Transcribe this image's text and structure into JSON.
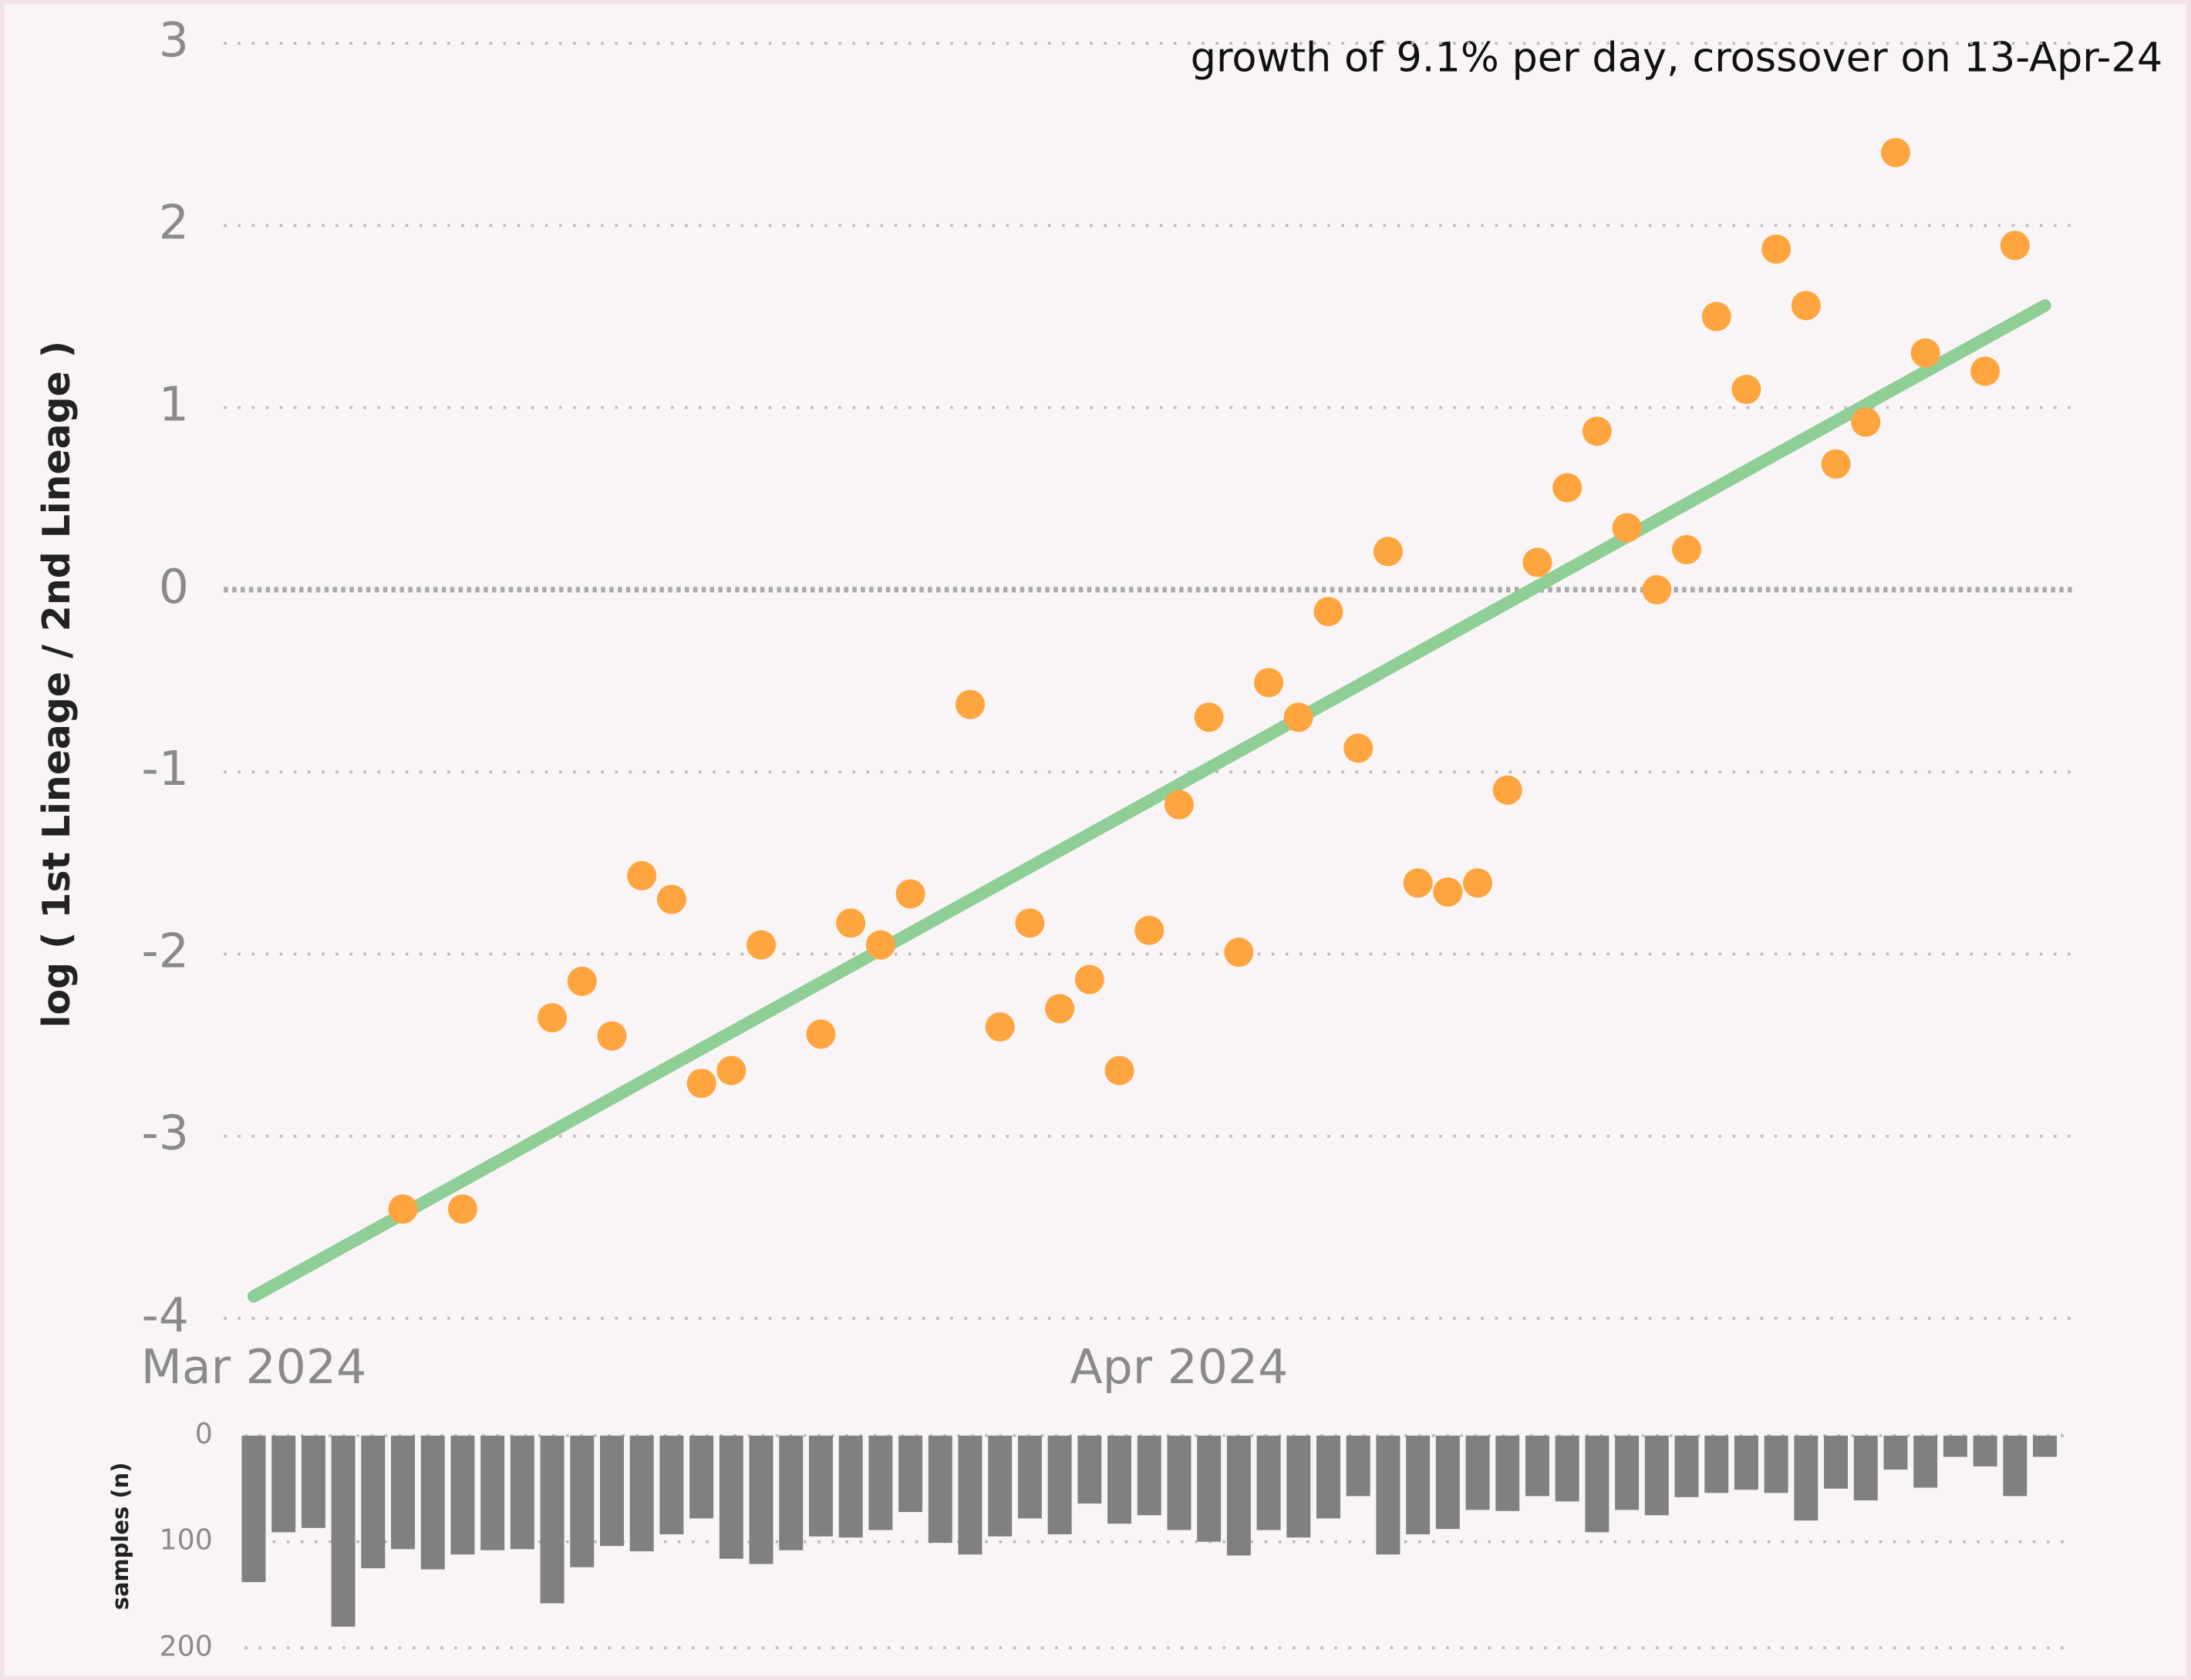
{
  "chart_data": [
    {
      "type": "scatter",
      "annotation": "growth of 9.1% per day, crossover on 13-Apr-24",
      "y_label": "log ( 1st Lineage / 2nd Lineage )",
      "color": "#ffa53f",
      "x": [
        "2024-03-06",
        "2024-03-08",
        "2024-03-11",
        "2024-03-12",
        "2024-03-13",
        "2024-03-14",
        "2024-03-15",
        "2024-03-16",
        "2024-03-17",
        "2024-03-18",
        "2024-03-20",
        "2024-03-21",
        "2024-03-22",
        "2024-03-23",
        "2024-03-25",
        "2024-03-26",
        "2024-03-27",
        "2024-03-28",
        "2024-03-29",
        "2024-03-30",
        "2024-03-31",
        "2024-04-01",
        "2024-04-02",
        "2024-04-03",
        "2024-04-04",
        "2024-04-05",
        "2024-04-06",
        "2024-04-07",
        "2024-04-08",
        "2024-04-09",
        "2024-04-10",
        "2024-04-11",
        "2024-04-12",
        "2024-04-13",
        "2024-04-14",
        "2024-04-15",
        "2024-04-16",
        "2024-04-17",
        "2024-04-18",
        "2024-04-19",
        "2024-04-20",
        "2024-04-21",
        "2024-04-22",
        "2024-04-23",
        "2024-04-24",
        "2024-04-25",
        "2024-04-26",
        "2024-04-28",
        "2024-04-29"
      ],
      "values": [
        -3.4,
        -3.4,
        -2.35,
        -2.15,
        -2.45,
        -1.57,
        -1.7,
        -2.71,
        -2.64,
        -1.95,
        -2.44,
        -1.83,
        -1.95,
        -1.67,
        -0.63,
        -2.4,
        -1.83,
        -2.3,
        -2.14,
        -2.64,
        -1.87,
        -1.18,
        -0.7,
        -1.99,
        -0.51,
        -0.7,
        -0.12,
        -0.87,
        0.21,
        -1.61,
        -1.66,
        -1.61,
        -1.1,
        0.15,
        0.56,
        0.87,
        0.34,
        0.0,
        0.22,
        1.5,
        1.1,
        1.87,
        1.56,
        0.69,
        0.92,
        2.4,
        1.3,
        1.2,
        1.89
      ],
      "trend": {
        "x": [
          "2024-03-01",
          "2024-04-30"
        ],
        "values": [
          -3.88,
          1.56
        ],
        "color": "#8fce96"
      },
      "xlim": [
        "2024-02-29",
        "2024-05-01"
      ],
      "xticks": [
        {
          "value": "2024-03-01",
          "label": "Mar 2024"
        },
        {
          "value": "2024-04-01",
          "label": "Apr 2024"
        }
      ],
      "ylim": [
        -4,
        3
      ],
      "yticks": [
        -4,
        -3,
        -2,
        -1,
        0,
        1,
        2,
        3
      ],
      "grid": true
    },
    {
      "type": "bar",
      "y_label": "samples (n)",
      "color": "#808080",
      "x": [
        "2024-03-01",
        "2024-03-02",
        "2024-03-03",
        "2024-03-04",
        "2024-03-05",
        "2024-03-06",
        "2024-03-07",
        "2024-03-08",
        "2024-03-09",
        "2024-03-10",
        "2024-03-11",
        "2024-03-12",
        "2024-03-13",
        "2024-03-14",
        "2024-03-15",
        "2024-03-16",
        "2024-03-17",
        "2024-03-18",
        "2024-03-19",
        "2024-03-20",
        "2024-03-21",
        "2024-03-22",
        "2024-03-23",
        "2024-03-24",
        "2024-03-25",
        "2024-03-26",
        "2024-03-27",
        "2024-03-28",
        "2024-03-29",
        "2024-03-30",
        "2024-03-31",
        "2024-04-01",
        "2024-04-02",
        "2024-04-03",
        "2024-04-04",
        "2024-04-05",
        "2024-04-06",
        "2024-04-07",
        "2024-04-08",
        "2024-04-09",
        "2024-04-10",
        "2024-04-11",
        "2024-04-12",
        "2024-04-13",
        "2024-04-14",
        "2024-04-15",
        "2024-04-16",
        "2024-04-17",
        "2024-04-18",
        "2024-04-19",
        "2024-04-20",
        "2024-04-21",
        "2024-04-22",
        "2024-04-23",
        "2024-04-24",
        "2024-04-25",
        "2024-04-26",
        "2024-04-27",
        "2024-04-28",
        "2024-04-29",
        "2024-04-30"
      ],
      "values": [
        138,
        91,
        87,
        180,
        125,
        107,
        126,
        112,
        108,
        107,
        158,
        124,
        104,
        109,
        93,
        78,
        116,
        121,
        108,
        95,
        96,
        89,
        72,
        101,
        112,
        95,
        78,
        93,
        64,
        83,
        75,
        89,
        100,
        113,
        89,
        96,
        78,
        57,
        112,
        93,
        88,
        70,
        71,
        57,
        62,
        91,
        70,
        75,
        58,
        54,
        51,
        54,
        80,
        50,
        61,
        32,
        49,
        20,
        29,
        57,
        20
      ],
      "xlim": [
        "2024-02-29",
        "2024-05-01"
      ],
      "ylim": [
        0,
        200
      ],
      "yticks": [
        0,
        100,
        200
      ],
      "inverted": true,
      "grid": true
    }
  ]
}
